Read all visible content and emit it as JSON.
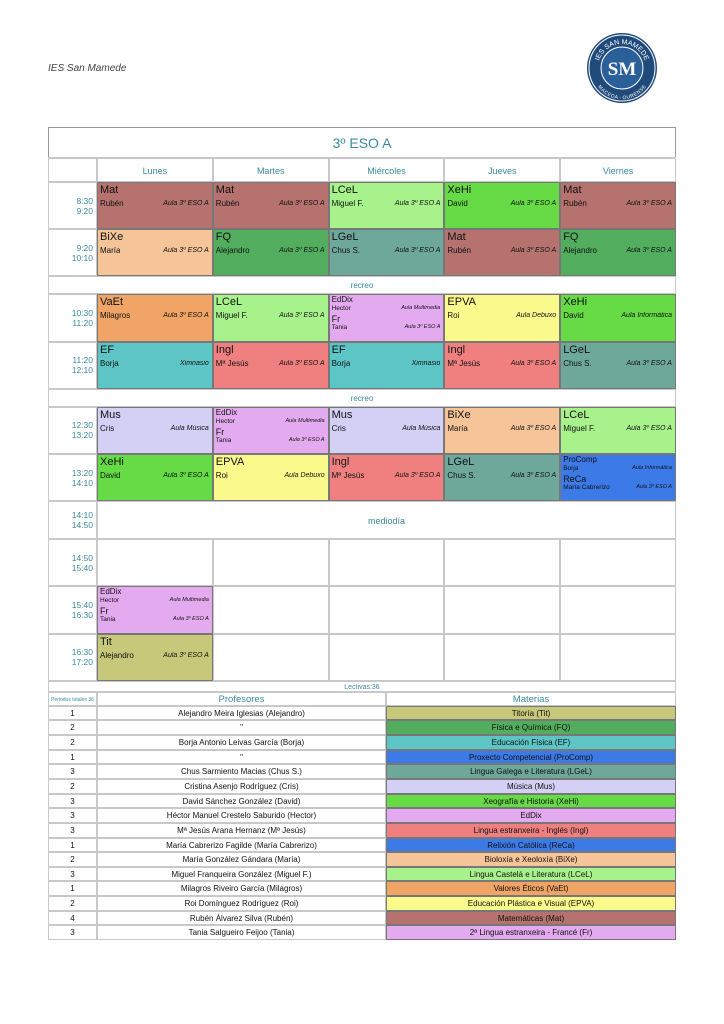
{
  "header": {
    "school": "IES San Mamede",
    "logo": {
      "top": "IES SAN MAMEDE",
      "initials": "SM",
      "bottom": "MACEDA - OURENSE"
    }
  },
  "timetable": {
    "title": "3º ESO A",
    "days": [
      "Lunes",
      "Martes",
      "Miércoles",
      "Jueves",
      "Viernes"
    ],
    "rows": [
      {
        "start": "8:30",
        "end": "9:20",
        "cells": [
          {
            "subject": "Mat",
            "teacher": "Rubén",
            "room": "Aula 3º ESO A",
            "color": "#b5726e"
          },
          {
            "subject": "Mat",
            "teacher": "Rubén",
            "room": "Aula 3º ESO A",
            "color": "#b5726e"
          },
          {
            "subject": "LCeL",
            "teacher": "Miguel F.",
            "room": "Aula 3º ESO A",
            "color": "#a8f28c"
          },
          {
            "subject": "XeHi",
            "teacher": "David",
            "room": "Aula 3º ESO A",
            "color": "#66db45"
          },
          {
            "subject": "Mat",
            "teacher": "Rubén",
            "room": "Aula 3º ESO A",
            "color": "#b5726e"
          }
        ]
      },
      {
        "start": "9:20",
        "end": "10:10",
        "cells": [
          {
            "subject": "BiXe",
            "teacher": "María",
            "room": "Aula 3º ESO A",
            "color": "#f6c499"
          },
          {
            "subject": "FQ",
            "teacher": "Alejandro",
            "room": "Aula 3º ESO A",
            "color": "#52ae5e"
          },
          {
            "subject": "LGeL",
            "teacher": "Chus S.",
            "room": "Aula 3º ESO A",
            "color": "#6ea89a"
          },
          {
            "subject": "Mat",
            "teacher": "Rubén",
            "room": "Aula 3º ESO A",
            "color": "#b5726e"
          },
          {
            "subject": "FQ",
            "teacher": "Alejandro",
            "room": "Aula 3º ESO A",
            "color": "#52ae5e"
          }
        ]
      },
      {
        "label": "recreo"
      },
      {
        "start": "10:30",
        "end": "11:20",
        "cells": [
          {
            "subject": "VaEt",
            "teacher": "Milagros",
            "room": "Aula 3º ESO A",
            "color": "#f0a465"
          },
          {
            "subject": "LCeL",
            "teacher": "Miguel F.",
            "room": "Aula 3º ESO A",
            "color": "#a8f28c"
          },
          {
            "color": "#e4aaf0",
            "groups": [
              {
                "subject": "EdDix",
                "teacher": "Hector",
                "room": "Aula Multimedia"
              },
              {
                "subject": "Fr",
                "teacher": "Tania",
                "room": "Aula 3º ESO A"
              }
            ]
          },
          {
            "subject": "EPVA",
            "teacher": "Roi",
            "room": "Aula Debuxo",
            "color": "#fafa8c"
          },
          {
            "subject": "XeHi",
            "teacher": "David",
            "room": "Aula Informática",
            "color": "#66db45"
          }
        ]
      },
      {
        "start": "11:20",
        "end": "12:10",
        "cells": [
          {
            "subject": "EF",
            "teacher": "Borja",
            "room": "Ximnasio",
            "color": "#5ec5c6"
          },
          {
            "subject": "Ingl",
            "teacher": "Mª Jesús",
            "room": "Aula 3º ESO A",
            "color": "#f08080"
          },
          {
            "subject": "EF",
            "teacher": "Borja",
            "room": "Ximnasio",
            "color": "#5ec5c6"
          },
          {
            "subject": "Ingl",
            "teacher": "Mª Jesús",
            "room": "Aula 3º ESO A",
            "color": "#f08080"
          },
          {
            "subject": "LGeL",
            "teacher": "Chus S.",
            "room": "Aula 3º ESO A",
            "color": "#6ea89a"
          }
        ]
      },
      {
        "label": "recreo"
      },
      {
        "start": "12:30",
        "end": "13:20",
        "cells": [
          {
            "subject": "Mus",
            "teacher": "Cris",
            "room": "Aula Música",
            "color": "#d3cff5"
          },
          {
            "color": "#e4aaf0",
            "groups": [
              {
                "subject": "EdDix",
                "teacher": "Hector",
                "room": "Aula Multimedia"
              },
              {
                "subject": "Fr",
                "teacher": "Tania",
                "room": "Aula 3º ESO A"
              }
            ]
          },
          {
            "subject": "Mus",
            "teacher": "Cris",
            "room": "Aula Música",
            "color": "#d3cff5"
          },
          {
            "subject": "BiXe",
            "teacher": "María",
            "room": "Aula 3º ESO A",
            "color": "#f6c499"
          },
          {
            "subject": "LCeL",
            "teacher": "Miguel F.",
            "room": "Aula 3º ESO A",
            "color": "#a8f28c"
          }
        ]
      },
      {
        "start": "13:20",
        "end": "14:10",
        "cells": [
          {
            "subject": "XeHi",
            "teacher": "David",
            "room": "Aula 3º ESO A",
            "color": "#66db45"
          },
          {
            "subject": "EPVA",
            "teacher": "Roi",
            "room": "Aula Debuxo",
            "color": "#fafa8c"
          },
          {
            "subject": "Ingl",
            "teacher": "Mª Jesús",
            "room": "Aula 3º ESO A",
            "color": "#f08080"
          },
          {
            "subject": "LGeL",
            "teacher": "Chus S.",
            "room": "Aula 3º ESO A",
            "color": "#6ea89a"
          },
          {
            "color": "#3c7ae8",
            "groups": [
              {
                "subject": "ProComp",
                "teacher": "Borja",
                "room": "Aula Informática"
              },
              {
                "subject": "ReCa",
                "teacher": "María Cabrerizo",
                "room": "Aula 3º ESO A"
              }
            ]
          }
        ]
      },
      {
        "start": "14:10",
        "end": "14:50",
        "label": "mediodía"
      },
      {
        "start": "14:50",
        "end": "15:40",
        "cells": [
          null,
          null,
          null,
          null,
          null
        ]
      },
      {
        "start": "15:40",
        "end": "16:30",
        "cells": [
          {
            "color": "#e4aaf0",
            "groups": [
              {
                "subject": "EdDix",
                "teacher": "Hector",
                "room": "Aula Multimedia"
              },
              {
                "subject": "Fr",
                "teacher": "Tania",
                "room": "Aula 3º ESO A"
              }
            ]
          },
          null,
          null,
          null,
          null
        ]
      },
      {
        "start": "16:30",
        "end": "17:20",
        "cells": [
          {
            "subject": "Tit",
            "teacher": "Alejandro",
            "room": "Aula 3º ESO A",
            "color": "#c8c87a"
          },
          null,
          null,
          null,
          null
        ]
      }
    ]
  },
  "summary": {
    "lectivas": "Lectivas:36",
    "periods_heading": "Periodos totales 36",
    "teachers_heading": "Profesores",
    "subjects_heading": "Materias",
    "rows": [
      {
        "count": 1,
        "teacher": "Alejandro Meira Iglesias (Alejandro)",
        "subject": "Titoría (Tit)",
        "color": "#c8c87a"
      },
      {
        "count": 2,
        "teacher": "\"",
        "subject": "Física e Química (FQ)",
        "color": "#52ae5e"
      },
      {
        "count": 2,
        "teacher": "Borja Antonio Leivas García (Borja)",
        "subject": "Educación Física (EF)",
        "color": "#5ec5c6"
      },
      {
        "count": 1,
        "teacher": "\"",
        "subject": "Proxecto Competencial (ProComp)",
        "color": "#3c7ae8"
      },
      {
        "count": 3,
        "teacher": "Chus Sarmiento Macias (Chus S.)",
        "subject": "Lingua Galega e Literatura (LGeL)",
        "color": "#6ea89a"
      },
      {
        "count": 2,
        "teacher": "Cristina Asenjo Rodríguez (Cris)",
        "subject": "Música (Mus)",
        "color": "#d3cff5"
      },
      {
        "count": 3,
        "teacher": "David Sánchez González (David)",
        "subject": "Xeografía e Historia (XeHi)",
        "color": "#66db45"
      },
      {
        "count": 3,
        "teacher": "Héctor Manuel Crestelo Saburido (Hector)",
        "subject": "EdDix",
        "color": "#e4aaf0"
      },
      {
        "count": 3,
        "teacher": "Mª Jesús Arana Hernanz (Mª Jesús)",
        "subject": "Lingua estranxeira - Inglés (Ingl)",
        "color": "#f08080"
      },
      {
        "count": 1,
        "teacher": "María Cabrerizo Fagilde (María Cabrerizo)",
        "subject": "Relixión Católica (ReCa)",
        "color": "#3c7ae8"
      },
      {
        "count": 2,
        "teacher": "María González Gándara (María)",
        "subject": "Bioloxía e Xeoloxía (BiXe)",
        "color": "#f6c499"
      },
      {
        "count": 3,
        "teacher": "Miguel Franqueira González (Miguel F.)",
        "subject": "Lingua Castelá e Literatura (LCeL)",
        "color": "#a8f28c"
      },
      {
        "count": 1,
        "teacher": "Milagros Riveiro García (Milagros)",
        "subject": "Valores Éticos (VaEt)",
        "color": "#f0a465"
      },
      {
        "count": 2,
        "teacher": "Roi Domínguez Rodríguez (Roi)",
        "subject": "Educación Plástica e Visual (EPVA)",
        "color": "#fafa8c"
      },
      {
        "count": 4,
        "teacher": "Rubén Álvarez Silva (Rubén)",
        "subject": "Matemáticas (Mat)",
        "color": "#b5726e"
      },
      {
        "count": 3,
        "teacher": "Tania Salgueiro Feijoo (Tania)",
        "subject": "2ª Lingua estranxeira - Francé (Fr)",
        "color": "#e4aaf0"
      }
    ]
  }
}
